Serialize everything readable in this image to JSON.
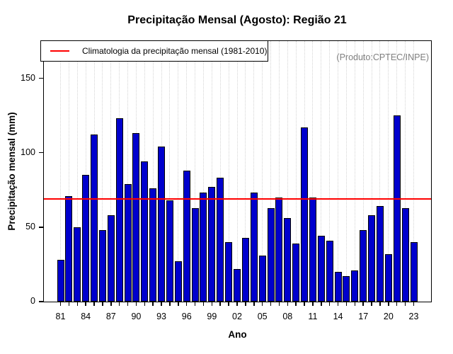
{
  "title": "Precipitação Mensal (Agosto): Região 21",
  "watermark": "(Produto:CPTEC/INPE)",
  "legend": {
    "label": "Climatologia da precipitação mensal (1981-2010)",
    "line_color": "#FF0000"
  },
  "chart_data": {
    "type": "bar",
    "title": "Precipitação Mensal (Agosto): Região 21",
    "xlabel": "Ano",
    "ylabel": "Precipitação mensal (mm)",
    "ylim": [
      0,
      175
    ],
    "yticks": [
      0,
      50,
      100,
      150
    ],
    "x_tick_labels_shown": [
      "81",
      "84",
      "87",
      "90",
      "93",
      "96",
      "99",
      "02",
      "05",
      "08",
      "11",
      "14",
      "17",
      "20",
      "23"
    ],
    "x_tick_label_every": 3,
    "grid": "vertical-dotted",
    "legend_position": "topleft",
    "categories": [
      "1981",
      "1982",
      "1983",
      "1984",
      "1985",
      "1986",
      "1987",
      "1988",
      "1989",
      "1990",
      "1991",
      "1992",
      "1993",
      "1994",
      "1995",
      "1996",
      "1997",
      "1998",
      "1999",
      "2000",
      "2001",
      "2002",
      "2003",
      "2004",
      "2005",
      "2006",
      "2007",
      "2008",
      "2009",
      "2010",
      "2011",
      "2012",
      "2013",
      "2014",
      "2015",
      "2016",
      "2017",
      "2018",
      "2019",
      "2020",
      "2021",
      "2022",
      "2023"
    ],
    "values": [
      28,
      71,
      50,
      85,
      112,
      48,
      58,
      123,
      79,
      113,
      94,
      76,
      104,
      68,
      27,
      88,
      63,
      73,
      77,
      83,
      40,
      22,
      43,
      73,
      31,
      63,
      70,
      56,
      39,
      117,
      70,
      44,
      41,
      20,
      17,
      21,
      48,
      58,
      64,
      32,
      125,
      63,
      40
    ],
    "climatology": {
      "label": "Climatologia da precipitação mensal (1981-2010)",
      "value": 69,
      "color": "#FF0000"
    },
    "bar_color": "#0000CD",
    "bar_border_color": "#000000"
  }
}
